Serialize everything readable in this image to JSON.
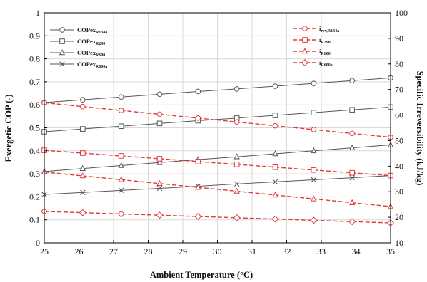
{
  "chart_data": {
    "type": "line",
    "xlabel": "Ambient Temperature (°C)",
    "ylabel_left": "Exergetic COP (-)",
    "ylabel_right": "Specific Irreversibility (kJ/kg)",
    "x_ticks": [
      25,
      26,
      27,
      28,
      29,
      30,
      31,
      32,
      33,
      34,
      35
    ],
    "xlim": [
      25,
      35
    ],
    "ylim_left": [
      0,
      1.0
    ],
    "ylim_right": [
      10,
      100
    ],
    "y_left_ticks": [
      "0",
      "0.1",
      "0.2",
      "0.3",
      "0.4",
      "0.5",
      "0.6",
      "0.7",
      "0.8",
      "0.9",
      "1"
    ],
    "y_right_ticks": [
      "10",
      "20",
      "30",
      "40",
      "50",
      "60",
      "70",
      "80",
      "90",
      "100"
    ],
    "grid": true,
    "x": [
      25,
      26.11,
      27.22,
      28.33,
      29.44,
      30.56,
      31.67,
      32.78,
      33.89,
      35
    ],
    "series_left": [
      {
        "name": "COPex,R134a",
        "base": "COPex",
        "sub": "R134a",
        "marker": "circle",
        "color": "#555555",
        "values": [
          0.61,
          0.622,
          0.634,
          0.646,
          0.658,
          0.669,
          0.681,
          0.693,
          0.705,
          0.717
        ]
      },
      {
        "name": "COPex,R290",
        "base": "COPex",
        "sub": "R290",
        "marker": "square",
        "color": "#555555",
        "values": [
          0.483,
          0.495,
          0.507,
          0.519,
          0.531,
          0.542,
          0.554,
          0.566,
          0.578,
          0.59
        ]
      },
      {
        "name": "COPex,R600",
        "base": "COPex",
        "sub": "R600",
        "marker": "triangle",
        "color": "#555555",
        "values": [
          0.31,
          0.323,
          0.336,
          0.349,
          0.362,
          0.374,
          0.387,
          0.4,
          0.413,
          0.426
        ]
      },
      {
        "name": "COPex,R600a",
        "base": "COPex",
        "sub": "R600a",
        "marker": "x",
        "color": "#555555",
        "values": [
          0.21,
          0.219,
          0.228,
          0.237,
          0.246,
          0.256,
          0.265,
          0.274,
          0.283,
          0.292
        ]
      }
    ],
    "series_right": [
      {
        "name": "irev,R134a",
        "base": "i",
        "sub": "rev,R134a",
        "marker": "circle",
        "color": "#e23a3a",
        "values": [
          64.8,
          63.3,
          61.8,
          60.3,
          58.8,
          57.3,
          55.8,
          54.3,
          52.8,
          51.3
        ]
      },
      {
        "name": "iR290",
        "base": "i",
        "sub": "R290",
        "marker": "square",
        "color": "#e23a3a",
        "values": [
          46.2,
          45.1,
          44.0,
          42.9,
          41.8,
          40.7,
          39.6,
          38.5,
          37.4,
          36.3
        ]
      },
      {
        "name": "iR600",
        "base": "i",
        "sub": "R600",
        "marker": "triangle",
        "color": "#e23a3a",
        "values": [
          37.7,
          36.2,
          34.7,
          33.2,
          31.7,
          30.2,
          28.7,
          27.2,
          25.7,
          24.2
        ]
      },
      {
        "name": "iR600a",
        "base": "i",
        "sub": "R600a",
        "marker": "diamond",
        "color": "#e23a3a",
        "values": [
          22.3,
          21.8,
          21.3,
          20.8,
          20.3,
          19.8,
          19.3,
          18.8,
          18.3,
          17.8
        ]
      }
    ]
  }
}
